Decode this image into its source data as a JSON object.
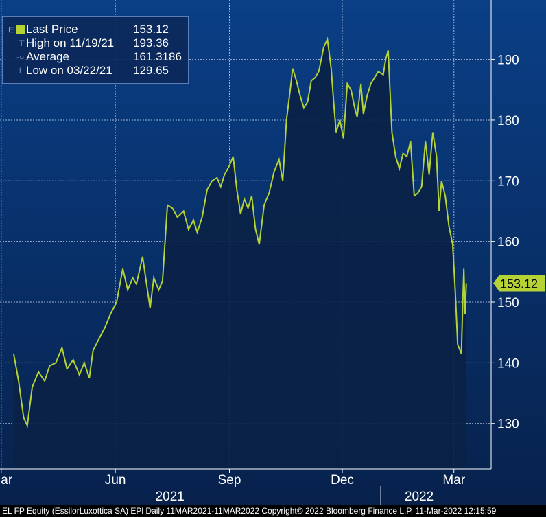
{
  "chart_data": {
    "type": "area",
    "series": [
      {
        "values": [
          {
            "x": "2021-03-11",
            "y": 141.5
          },
          {
            "x": "2021-03-15",
            "y": 137.0
          },
          {
            "x": "2021-03-19",
            "y": 131.0
          },
          {
            "x": "2021-03-22",
            "y": 129.65
          },
          {
            "x": "2021-03-26",
            "y": 136.0
          },
          {
            "x": "2021-03-31",
            "y": 138.5
          },
          {
            "x": "2021-04-05",
            "y": 137.0
          },
          {
            "x": "2021-04-09",
            "y": 139.5
          },
          {
            "x": "2021-04-14",
            "y": 140.0
          },
          {
            "x": "2021-04-19",
            "y": 142.5
          },
          {
            "x": "2021-04-23",
            "y": 139.0
          },
          {
            "x": "2021-04-28",
            "y": 140.5
          },
          {
            "x": "2021-05-03",
            "y": 138.0
          },
          {
            "x": "2021-05-07",
            "y": 140.0
          },
          {
            "x": "2021-05-11",
            "y": 137.5
          },
          {
            "x": "2021-05-14",
            "y": 142.0
          },
          {
            "x": "2021-05-19",
            "y": 144.0
          },
          {
            "x": "2021-05-24",
            "y": 146.0
          },
          {
            "x": "2021-05-28",
            "y": 148.0
          },
          {
            "x": "2021-06-02",
            "y": 150.0
          },
          {
            "x": "2021-06-07",
            "y": 155.5
          },
          {
            "x": "2021-06-11",
            "y": 152.0
          },
          {
            "x": "2021-06-15",
            "y": 154.0
          },
          {
            "x": "2021-06-18",
            "y": 153.0
          },
          {
            "x": "2021-06-23",
            "y": 157.5
          },
          {
            "x": "2021-06-29",
            "y": 149.0
          },
          {
            "x": "2021-07-02",
            "y": 154.0
          },
          {
            "x": "2021-07-06",
            "y": 152.0
          },
          {
            "x": "2021-07-09",
            "y": 153.5
          },
          {
            "x": "2021-07-13",
            "y": 166.0
          },
          {
            "x": "2021-07-17",
            "y": 165.5
          },
          {
            "x": "2021-07-21",
            "y": 164.0
          },
          {
            "x": "2021-07-26",
            "y": 165.0
          },
          {
            "x": "2021-07-30",
            "y": 162.0
          },
          {
            "x": "2021-08-03",
            "y": 163.5
          },
          {
            "x": "2021-08-06",
            "y": 161.5
          },
          {
            "x": "2021-08-10",
            "y": 164.0
          },
          {
            "x": "2021-08-14",
            "y": 168.5
          },
          {
            "x": "2021-08-18",
            "y": 170.0
          },
          {
            "x": "2021-08-22",
            "y": 170.5
          },
          {
            "x": "2021-08-25",
            "y": 169.0
          },
          {
            "x": "2021-08-28",
            "y": 171.0
          },
          {
            "x": "2021-09-01",
            "y": 172.5
          },
          {
            "x": "2021-09-04",
            "y": 174.0
          },
          {
            "x": "2021-09-07",
            "y": 168.5
          },
          {
            "x": "2021-09-10",
            "y": 164.5
          },
          {
            "x": "2021-09-13",
            "y": 167.0
          },
          {
            "x": "2021-09-16",
            "y": 165.5
          },
          {
            "x": "2021-09-19",
            "y": 167.5
          },
          {
            "x": "2021-09-22",
            "y": 162.0
          },
          {
            "x": "2021-09-25",
            "y": 159.5
          },
          {
            "x": "2021-09-29",
            "y": 166.0
          },
          {
            "x": "2021-10-03",
            "y": 168.0
          },
          {
            "x": "2021-10-07",
            "y": 171.5
          },
          {
            "x": "2021-10-11",
            "y": 173.5
          },
          {
            "x": "2021-10-14",
            "y": 170.0
          },
          {
            "x": "2021-10-17",
            "y": 180.0
          },
          {
            "x": "2021-10-20",
            "y": 185.0
          },
          {
            "x": "2021-10-22",
            "y": 188.5
          },
          {
            "x": "2021-10-25",
            "y": 186.5
          },
          {
            "x": "2021-10-28",
            "y": 184.0
          },
          {
            "x": "2021-10-31",
            "y": 182.0
          },
          {
            "x": "2021-11-03",
            "y": 183.0
          },
          {
            "x": "2021-11-06",
            "y": 186.5
          },
          {
            "x": "2021-11-09",
            "y": 187.0
          },
          {
            "x": "2021-11-12",
            "y": 188.0
          },
          {
            "x": "2021-11-16",
            "y": 192.0
          },
          {
            "x": "2021-11-19",
            "y": 193.36
          },
          {
            "x": "2021-11-22",
            "y": 188.5
          },
          {
            "x": "2021-11-24",
            "y": 183.0
          },
          {
            "x": "2021-11-26",
            "y": 178.0
          },
          {
            "x": "2021-11-29",
            "y": 180.0
          },
          {
            "x": "2021-12-02",
            "y": 177.0
          },
          {
            "x": "2021-12-05",
            "y": 186.0
          },
          {
            "x": "2021-12-08",
            "y": 185.0
          },
          {
            "x": "2021-12-11",
            "y": 182.0
          },
          {
            "x": "2021-12-13",
            "y": 180.5
          },
          {
            "x": "2021-12-16",
            "y": 186.0
          },
          {
            "x": "2021-12-18",
            "y": 181.0
          },
          {
            "x": "2021-12-21",
            "y": 184.0
          },
          {
            "x": "2021-12-24",
            "y": 186.0
          },
          {
            "x": "2021-12-27",
            "y": 187.0
          },
          {
            "x": "2021-12-30",
            "y": 188.0
          },
          {
            "x": "2022-01-03",
            "y": 187.5
          },
          {
            "x": "2022-01-05",
            "y": 190.0
          },
          {
            "x": "2022-01-07",
            "y": 191.5
          },
          {
            "x": "2022-01-10",
            "y": 178.0
          },
          {
            "x": "2022-01-13",
            "y": 174.0
          },
          {
            "x": "2022-01-16",
            "y": 172.0
          },
          {
            "x": "2022-01-19",
            "y": 174.5
          },
          {
            "x": "2022-01-22",
            "y": 174.0
          },
          {
            "x": "2022-01-25",
            "y": 176.5
          },
          {
            "x": "2022-01-28",
            "y": 167.5
          },
          {
            "x": "2022-01-31",
            "y": 168.0
          },
          {
            "x": "2022-02-03",
            "y": 169.0
          },
          {
            "x": "2022-02-06",
            "y": 176.5
          },
          {
            "x": "2022-02-09",
            "y": 171.0
          },
          {
            "x": "2022-02-12",
            "y": 178.0
          },
          {
            "x": "2022-02-15",
            "y": 174.0
          },
          {
            "x": "2022-02-17",
            "y": 165.0
          },
          {
            "x": "2022-02-19",
            "y": 170.0
          },
          {
            "x": "2022-02-22",
            "y": 167.5
          },
          {
            "x": "2022-02-25",
            "y": 162.5
          },
          {
            "x": "2022-02-28",
            "y": 159.5
          },
          {
            "x": "2022-03-02",
            "y": 152.0
          },
          {
            "x": "2022-03-04",
            "y": 143.0
          },
          {
            "x": "2022-03-07",
            "y": 141.5
          },
          {
            "x": "2022-03-08",
            "y": 149.0
          },
          {
            "x": "2022-03-09",
            "y": 155.5
          },
          {
            "x": "2022-03-10",
            "y": 148.0
          },
          {
            "x": "2022-03-11",
            "y": 153.12
          }
        ]
      }
    ],
    "y_ticks": [
      130,
      140,
      150,
      160,
      170,
      180,
      190
    ],
    "x_ticks": [
      {
        "x": "2021-03-01",
        "label": "Mar"
      },
      {
        "x": "2021-06-01",
        "label": "Jun"
      },
      {
        "x": "2021-09-01",
        "label": "Sep"
      },
      {
        "x": "2021-12-01",
        "label": "Dec"
      },
      {
        "x": "2022-03-01",
        "label": "Mar"
      }
    ],
    "year_labels": [
      {
        "x": "2021-07-15",
        "label": "2021"
      },
      {
        "x": "2022-02-01",
        "label": "2022"
      }
    ],
    "year_divider": "2022-01-01",
    "xlim": [
      "2021-02-28",
      "2022-03-31"
    ],
    "ylim": [
      122.5,
      199.8
    ],
    "grid": true,
    "legend_position": "top-left",
    "last_price_tag": "153.12",
    "colors": {
      "line": "#b5d334",
      "area_fill": "#0b2247",
      "bg_top": "#0a3f86",
      "bg_bottom": "#07214c",
      "grid": "#c6d4ea",
      "text": "#ffffff"
    }
  },
  "legend": {
    "items": [
      {
        "label": "Last Price",
        "value": "153.12",
        "icon": "green-square-icon"
      },
      {
        "label": "High on 11/19/21",
        "value": "193.36",
        "icon": "high-marker-icon"
      },
      {
        "label": "Average",
        "value": "161.3186",
        "icon": "average-marker-icon"
      },
      {
        "label": "Low on 03/22/21",
        "value": "129.65",
        "icon": "low-marker-icon"
      }
    ],
    "collapse_icon": "collapse-box-icon"
  },
  "footer": {
    "text": "EL FP Equity (EssilorLuxottica SA) EPl  Daily 11MAR2021-11MAR2022 Copyright© 2022 Bloomberg Finance L.P.  11-Mar-2022 12:15:59"
  }
}
